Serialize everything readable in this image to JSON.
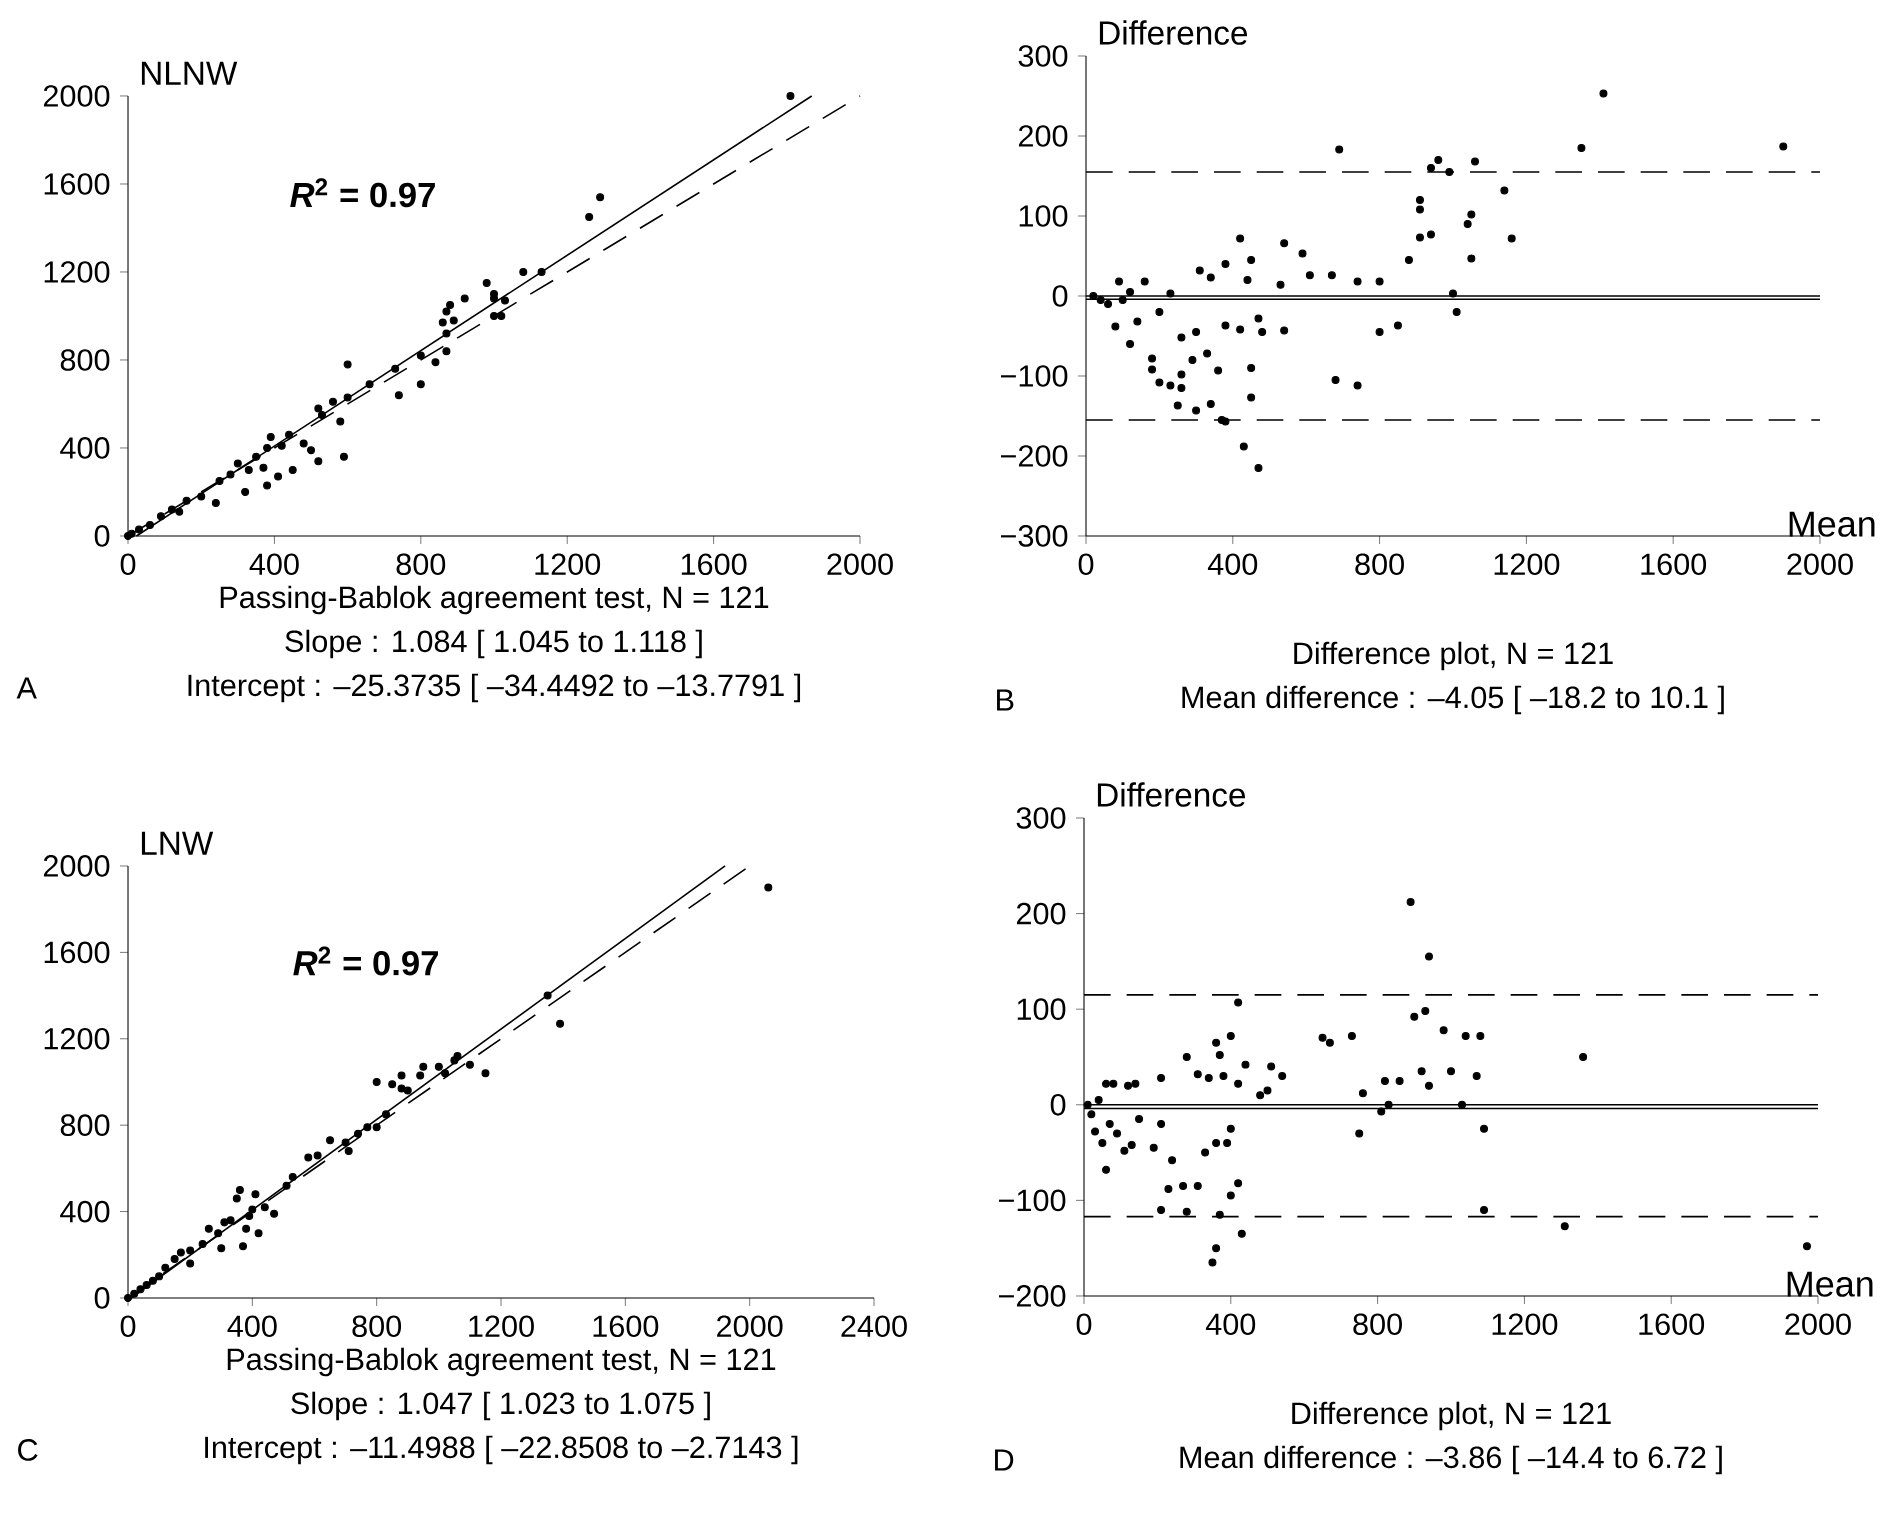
{
  "chart_data": [
    {
      "type": "scatter",
      "ylabel": "NLNW",
      "xlabel": "Passing-Bablok agreement test, N = 121",
      "annotations": [
        "A",
        "Slope : 1.084 [ 1.045 to 1.118 ]",
        "Intercept : –25.3735 [ –34.4492 to –13.7791 ]",
        "*R*$^{2}$ = 0.97"
      ],
      "xlim": [
        0,
        2000
      ],
      "ylim": [
        0,
        2000
      ],
      "xticks": [
        0,
        400,
        800,
        1200,
        1600,
        2000
      ],
      "yticks": [
        0,
        400,
        800,
        1200,
        1600,
        2000
      ],
      "series": [
        {
          "marker": "circle",
          "color": "#000000",
          "x": [
            1810,
            1290,
            1260,
            1130,
            1080,
            1030,
            1000,
            1000,
            1020,
            1000,
            980,
            920,
            890,
            880,
            870,
            860,
            870,
            870,
            840,
            800,
            800,
            740,
            730,
            660,
            600,
            600,
            580,
            560,
            530,
            520,
            520,
            500,
            480,
            440,
            450,
            420,
            410,
            390,
            380,
            370,
            350,
            330,
            320,
            300,
            280,
            250,
            240,
            200,
            160,
            140,
            120,
            90,
            60,
            30,
            10,
            0,
            380,
            590
          ],
          "values": [
            2000,
            1540,
            1450,
            1200,
            1200,
            1070,
            1080,
            1100,
            1000,
            1000,
            1150,
            1080,
            980,
            1050,
            1020,
            970,
            920,
            840,
            790,
            820,
            690,
            640,
            760,
            690,
            780,
            630,
            520,
            610,
            550,
            580,
            340,
            390,
            420,
            460,
            300,
            410,
            270,
            450,
            400,
            310,
            360,
            300,
            200,
            330,
            280,
            250,
            150,
            180,
            160,
            110,
            120,
            90,
            50,
            30,
            10,
            0,
            230,
            360
          ]
        },
        {
          "type": "line",
          "marker": "none",
          "color": "#000000",
          "line_style": "solid",
          "x": [
            23,
            1868
          ],
          "values": [
            0,
            2000
          ]
        },
        {
          "type": "line",
          "marker": "none",
          "color": "#000000",
          "line_style": "dashed",
          "x": [
            0,
            2000
          ],
          "values": [
            0,
            2000
          ]
        }
      ]
    },
    {
      "type": "scatter",
      "ylabel": "Difference",
      "xlabel": "Mean",
      "annotations": [
        "B",
        "Difference plot, N = 121",
        "Mean difference : –4.05 [ –18.2 to 10.1 ]"
      ],
      "xlim": [
        0,
        2000
      ],
      "ylim": [
        -300,
        300
      ],
      "xticks": [
        0,
        400,
        800,
        1200,
        1600,
        2000
      ],
      "yticks": [
        {
          "value": -300,
          "label": "−300"
        },
        {
          "value": -200,
          "label": "−200"
        },
        {
          "value": -100,
          "label": "−100"
        },
        0,
        100,
        200,
        300
      ],
      "ref_lines": [
        {
          "axis": "y",
          "value": 0,
          "line_style": "solid"
        },
        {
          "axis": "y",
          "value": -4.05,
          "line_style": "solid"
        },
        {
          "axis": "y",
          "value": 155,
          "line_style": "dashed"
        },
        {
          "axis": "y",
          "value": -155,
          "line_style": "dashed"
        }
      ],
      "series": [
        {
          "marker": "circle",
          "color": "#000000",
          "x": [
            1900,
            1410,
            1350,
            690,
            960,
            1060,
            940,
            990,
            1140,
            910,
            910,
            1050,
            1040,
            940,
            910,
            1160,
            880,
            1050,
            420,
            540,
            590,
            450,
            380,
            310,
            610,
            670,
            740,
            800,
            530,
            440,
            340,
            90,
            160,
            120,
            1000,
            1010,
            800,
            850,
            540,
            480,
            470,
            420,
            380,
            300,
            260,
            330,
            290,
            180,
            180,
            200,
            230,
            260,
            260,
            250,
            300,
            340,
            360,
            450,
            450,
            370,
            380,
            430,
            470,
            680,
            740,
            120,
            80,
            140,
            40,
            20,
            60,
            100,
            200,
            230
          ],
          "values": [
            187,
            253,
            185,
            183,
            170,
            168,
            160,
            155,
            132,
            120,
            108,
            102,
            90,
            77,
            73,
            72,
            45,
            47,
            72,
            66,
            53,
            45,
            40,
            32,
            26,
            26,
            18,
            18,
            14,
            20,
            23,
            18,
            18,
            5,
            3,
            -20,
            -45,
            -37,
            -43,
            -45,
            -28,
            -42,
            -37,
            -45,
            -52,
            -72,
            -80,
            -78,
            -92,
            -108,
            -112,
            -115,
            -98,
            -137,
            -143,
            -135,
            -93,
            -90,
            -127,
            -155,
            -157,
            -188,
            -215,
            -105,
            -112,
            -60,
            -38,
            -32,
            -5,
            0,
            -10,
            -5,
            -20,
            3
          ]
        }
      ]
    },
    {
      "type": "scatter",
      "ylabel": "LNW",
      "xlabel": "Passing-Bablok agreement test, N = 121",
      "annotations": [
        "C",
        "Slope : 1.047 [ 1.023 to 1.075 ]",
        "Intercept : –11.4988 [ –22.8508 to –2.7143 ]",
        "*R*$^{2}$ = 0.97"
      ],
      "xlim": [
        0,
        2400
      ],
      "ylim": [
        0,
        2000
      ],
      "xticks": [
        0,
        400,
        800,
        1200,
        1600,
        2000,
        2400
      ],
      "yticks": [
        0,
        400,
        800,
        1200,
        1600,
        2000
      ],
      "series": [
        {
          "marker": "circle",
          "color": "#000000",
          "x": [
            2060,
            1350,
            1390,
            1150,
            1100,
            1060,
            1050,
            1000,
            1020,
            950,
            940,
            900,
            880,
            880,
            850,
            800,
            800,
            830,
            770,
            740,
            700,
            710,
            650,
            610,
            580,
            530,
            510,
            470,
            440,
            420,
            410,
            400,
            380,
            370,
            360,
            350,
            330,
            310,
            300,
            290,
            260,
            240,
            200,
            200,
            170,
            150,
            120,
            100,
            80,
            60,
            40,
            20,
            0,
            390
          ],
          "values": [
            1900,
            1400,
            1270,
            1040,
            1080,
            1120,
            1100,
            1070,
            1040,
            1070,
            1030,
            960,
            1030,
            970,
            990,
            1000,
            790,
            850,
            790,
            760,
            720,
            680,
            730,
            660,
            650,
            560,
            520,
            390,
            420,
            300,
            480,
            410,
            320,
            240,
            500,
            460,
            360,
            350,
            230,
            300,
            320,
            250,
            220,
            160,
            210,
            180,
            140,
            100,
            80,
            60,
            40,
            20,
            0,
            380
          ]
        },
        {
          "type": "line",
          "marker": "none",
          "color": "#000000",
          "line_style": "solid",
          "x": [
            11,
            1921
          ],
          "values": [
            0,
            2000
          ]
        },
        {
          "type": "line",
          "marker": "none",
          "color": "#000000",
          "line_style": "dashed",
          "x": [
            0,
            2000
          ],
          "values": [
            0,
            2000
          ]
        }
      ]
    },
    {
      "type": "scatter",
      "ylabel": "Difference",
      "xlabel": "Mean",
      "annotations": [
        "D",
        "Difference plot, N = 121",
        "Mean difference : –3.86 [ –14.4 to 6.72 ]"
      ],
      "xlim": [
        0,
        2000
      ],
      "ylim": [
        -200,
        300
      ],
      "xticks": [
        0,
        400,
        800,
        1200,
        1600,
        2000
      ],
      "yticks": [
        {
          "value": -200,
          "label": "−200"
        },
        {
          "value": -100,
          "label": "−100"
        },
        0,
        100,
        200,
        300
      ],
      "ref_lines": [
        {
          "axis": "y",
          "value": 0,
          "line_style": "solid"
        },
        {
          "axis": "y",
          "value": -3.86,
          "line_style": "solid"
        },
        {
          "axis": "y",
          "value": 115,
          "line_style": "dashed"
        },
        {
          "axis": "y",
          "value": -117,
          "line_style": "dashed"
        }
      ],
      "series": [
        {
          "marker": "circle",
          "color": "#000000",
          "x": [
            890,
            940,
            1360,
            420,
            400,
            900,
            930,
            980,
            1040,
            1080,
            650,
            670,
            730,
            420,
            440,
            510,
            540,
            500,
            480,
            360,
            370,
            280,
            310,
            340,
            380,
            210,
            120,
            140,
            80,
            60,
            920,
            1000,
            1070,
            940,
            1030,
            820,
            860,
            760,
            810,
            830,
            750,
            1090,
            1090,
            1310,
            420,
            430,
            370,
            350,
            400,
            360,
            390,
            360,
            330,
            310,
            270,
            230,
            210,
            280,
            240,
            210,
            190,
            150,
            130,
            110,
            90,
            70,
            60,
            50,
            30,
            20,
            10,
            40,
            400,
            1970
          ],
          "values": [
            212,
            155,
            50,
            107,
            72,
            92,
            98,
            78,
            72,
            72,
            70,
            65,
            72,
            22,
            42,
            40,
            30,
            15,
            10,
            65,
            52,
            50,
            32,
            28,
            30,
            28,
            20,
            22,
            22,
            22,
            35,
            35,
            30,
            20,
            0,
            25,
            25,
            12,
            -7,
            0,
            -30,
            -25,
            -110,
            -127,
            -82,
            -135,
            -115,
            -165,
            -95,
            -150,
            -40,
            -40,
            -50,
            -85,
            -85,
            -88,
            -110,
            -112,
            -58,
            -20,
            -45,
            -15,
            -42,
            -48,
            -30,
            -20,
            -68,
            -40,
            -28,
            -10,
            0,
            5,
            -25,
            -148
          ]
        }
      ]
    }
  ]
}
